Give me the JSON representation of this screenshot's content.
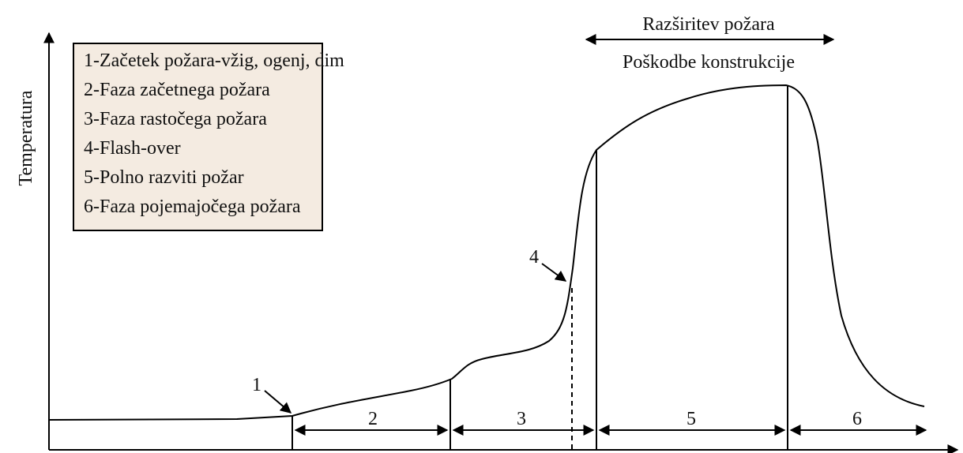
{
  "axis_label": "Temperatura",
  "legend": [
    "1-Začetek požara-vžig, ogenj, dim",
    "2-Faza začetnega požara",
    "3-Faza rastočega požara",
    "4-Flash-over",
    "5-Polno razviti požar",
    "6-Faza pojemajočega požara"
  ],
  "annotations": {
    "spread": "Razširitev požara",
    "damage": "Poškodbe konstrukcije"
  },
  "markers": [
    "1",
    "4"
  ],
  "phases": [
    "2",
    "3",
    "5",
    "6"
  ]
}
